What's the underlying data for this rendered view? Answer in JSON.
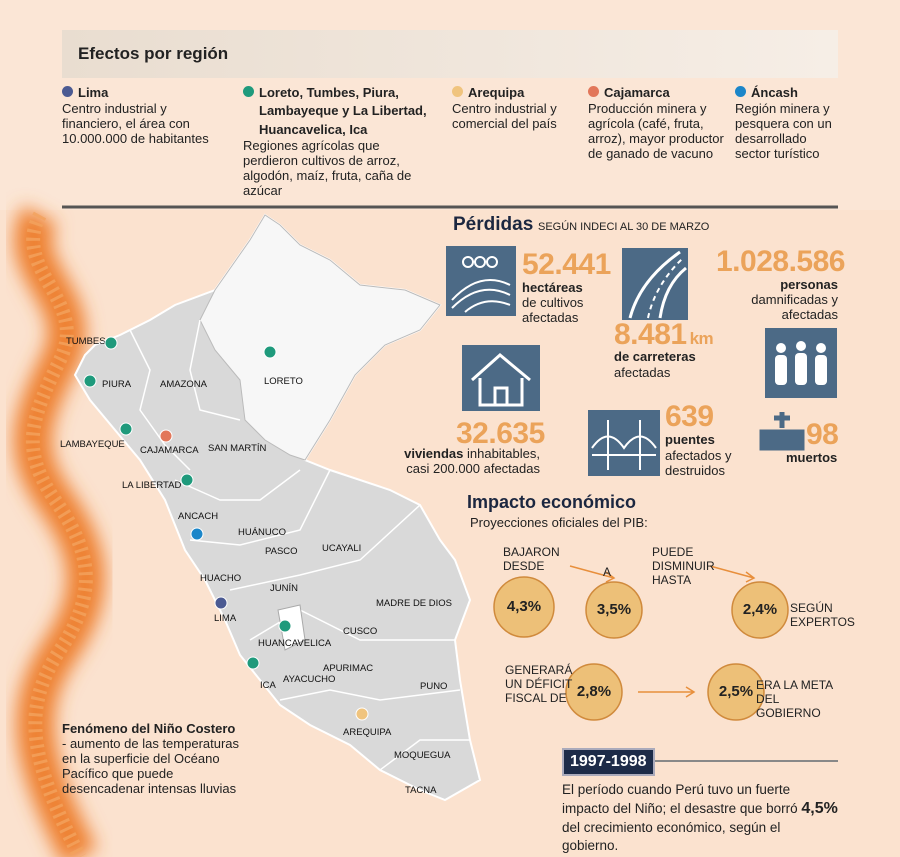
{
  "header": {
    "title": "Efectos por región"
  },
  "regions": [
    {
      "name": "Lima",
      "description": "Centro industrial y financiero, el área con 10.000.000 de habitantes",
      "color": "#4b5a92"
    },
    {
      "name": "Loreto, Tumbes, Piura, Lambayeque y La Libertad, Huancavelica, Ica",
      "description": "Regiones agrícolas que perdieron cultivos de arroz, algodón, maíz, fruta, caña de azúcar",
      "color": "#1f9a7c"
    },
    {
      "name": "Arequipa",
      "description": "Centro industrial y comercial del país",
      "color": "#f0c47e"
    },
    {
      "name": "Cajamarca",
      "description": "Producción minera y agrícola (café, fruta, arroz), mayor productor de ganado de vacuno",
      "color": "#e2775a"
    },
    {
      "name": "Áncash",
      "description": "Región minera y pesquera con un desarrollado sector turístico",
      "color": "#1b86c9"
    }
  ],
  "losses": {
    "title": "Pérdidas",
    "subtitle": "SEGÚN INDECI AL 30 DE MARZO",
    "items": [
      {
        "value": "52.441",
        "label": "hectáreas",
        "text": "de cultivos afectadas"
      },
      {
        "value": "8.481",
        "unit": "km",
        "label": "de carreteras",
        "text": "afectadas"
      },
      {
        "value": "1.028.586",
        "label": "personas",
        "text": "damnificadas y afectadas"
      },
      {
        "value": "32.635",
        "label": "viviendas",
        "text": "inhabitables, casi 200.000 afectadas"
      },
      {
        "value": "639",
        "label": "puentes",
        "text": "afectados y destruidos"
      },
      {
        "value": "98",
        "label": "muertos"
      }
    ]
  },
  "impact": {
    "title": "Impacto económico",
    "subtitle": "Proyecciones oficiales del PIB:",
    "row1": {
      "label_from": "BAJARON DESDE",
      "from": "4,3%",
      "label_to": "A",
      "to": "3,5%",
      "label_may": "PUEDE DISMINUIR HASTA",
      "may": "2,4%",
      "label_source": "SEGÚN EXPERTOS"
    },
    "row2": {
      "label_deficit": "GENERARÁ UN DÉFICIT FISCAL DE",
      "deficit": "2,8%",
      "goal": "2,5%",
      "label_goal": "ERA LA META DEL GOBIERNO"
    }
  },
  "history": {
    "years": "1997-1998",
    "text_before": "El período cuando Perú tuvo un fuerte impacto del Niño; el desastre que borró",
    "highlight": "4,5%",
    "text_after": "del crecimiento económico, según el gobierno."
  },
  "note": {
    "title": "Fenómeno del Niño Costero",
    "text": "- aumento de las temperaturas en la superficie del Océano Pacífico que puede desencadenar intensas lluvias"
  },
  "map": {
    "labels": [
      "TUMBES",
      "PIURA",
      "LAMBAYEQUE",
      "CAJAMARCA",
      "AMAZONA",
      "LORETO",
      "SAN MARTÍN",
      "LA LIBERTAD",
      "ANCACH",
      "HUÁNUCO",
      "PASCO",
      "UCAYALI",
      "JUNÍN",
      "HUACHO",
      "LIMA",
      "MADRE DE DIOS",
      "CUSCO",
      "HUANCAVELICA",
      "APURIMAC",
      "AYACUCHO",
      "ICA",
      "PUNO",
      "AREQUIPA",
      "MOQUEGUA",
      "TACNA"
    ]
  }
}
